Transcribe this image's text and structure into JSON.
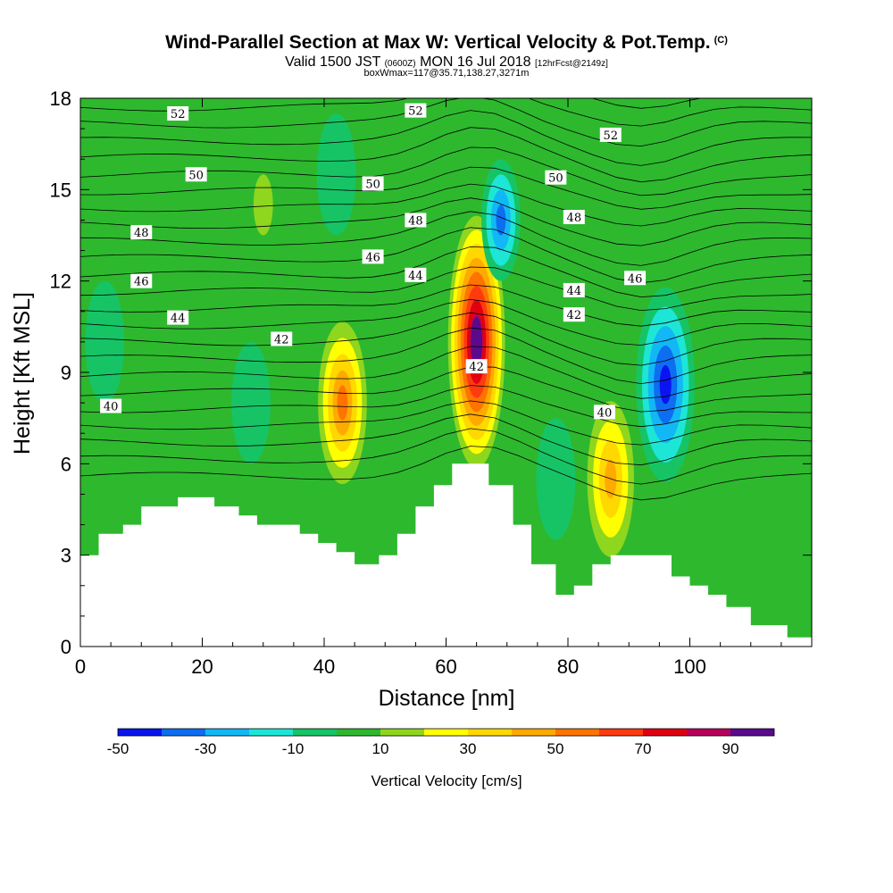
{
  "chart_data": {
    "type": "heatmap",
    "title": "Wind-Parallel Section at Max W: Vertical Velocity & Pot.Temp.",
    "title_mark": "(C)",
    "subtitle_main": "Valid 1500 JST",
    "subtitle_utc": "(0600Z)",
    "subtitle_date": "MON 16 Jul 2018",
    "subtitle_fcst": "[12hrFcst@2149z]",
    "subtitle_box": "boxWmax=117@35.71,138.27,3271m",
    "xlabel": "Distance [nm]",
    "ylabel": "Height [Kft MSL]",
    "xlim": [
      0,
      120
    ],
    "ylim": [
      0,
      18
    ],
    "xticks": [
      0,
      20,
      40,
      60,
      80,
      100
    ],
    "yticks": [
      0,
      3,
      6,
      9,
      12,
      15,
      18
    ],
    "colorbar": {
      "label": "Vertical Velocity [cm/s]",
      "ticks": [
        -50,
        -30,
        -10,
        10,
        30,
        50,
        70,
        90
      ],
      "bounds": [
        -50,
        -40,
        -30,
        -20,
        -10,
        0,
        10,
        20,
        30,
        40,
        50,
        60,
        70,
        80,
        90,
        100
      ],
      "colors": [
        "#0a14f0",
        "#0d6ef2",
        "#12b8f5",
        "#1de6d6",
        "#16c466",
        "#2eb82e",
        "#8fd61e",
        "#ffff00",
        "#ffd800",
        "#ffaa00",
        "#ff7300",
        "#ff3a10",
        "#e00010",
        "#b8005a",
        "#5a0a8c"
      ]
    },
    "background_velocity_cm_s": 0,
    "vertical_velocity_features": [
      {
        "x": 43,
        "y": 8.0,
        "peak": 55,
        "note": "updraft"
      },
      {
        "x": 65,
        "y": 10.0,
        "peak": 95,
        "note": "max updraft"
      },
      {
        "x": 87,
        "y": 5.5,
        "peak": 45,
        "note": "updraft"
      },
      {
        "x": 96,
        "y": 8.6,
        "peak": -45,
        "note": "downdraft"
      },
      {
        "x": 69,
        "y": 14.0,
        "peak": -35,
        "note": "downdraft"
      },
      {
        "x": 30,
        "y": 14.5,
        "peak": 15,
        "note": "weak updraft"
      },
      {
        "x": 42,
        "y": 15.5,
        "peak": -10,
        "note": "weak downdraft"
      },
      {
        "x": 28,
        "y": 8.0,
        "peak": -10,
        "note": "weak downdraft"
      },
      {
        "x": 4,
        "y": 10.0,
        "peak": -10,
        "note": "weak downdraft"
      },
      {
        "x": 78,
        "y": 5.5,
        "peak": -8,
        "note": "weak downdraft"
      }
    ],
    "terrain_kft": [
      [
        0,
        3.0
      ],
      [
        3,
        3.7
      ],
      [
        7,
        4.0
      ],
      [
        10,
        4.6
      ],
      [
        16,
        4.9
      ],
      [
        22,
        4.6
      ],
      [
        26,
        4.3
      ],
      [
        29,
        4.0
      ],
      [
        36,
        3.7
      ],
      [
        39,
        3.4
      ],
      [
        42,
        3.1
      ],
      [
        45,
        2.7
      ],
      [
        49,
        3.0
      ],
      [
        52,
        3.7
      ],
      [
        55,
        4.6
      ],
      [
        58,
        5.3
      ],
      [
        61,
        6.0
      ],
      [
        67,
        5.3
      ],
      [
        71,
        4.0
      ],
      [
        74,
        2.7
      ],
      [
        78,
        1.7
      ],
      [
        81,
        2.0
      ],
      [
        84,
        2.7
      ],
      [
        87,
        3.0
      ],
      [
        97,
        2.3
      ],
      [
        100,
        2.0
      ],
      [
        103,
        1.7
      ],
      [
        106,
        1.3
      ],
      [
        110,
        0.7
      ],
      [
        116,
        0.3
      ],
      [
        120,
        0.3
      ]
    ],
    "potential_temperature_labels": [
      {
        "text": "52",
        "x": 16,
        "y": 17.5
      },
      {
        "text": "52",
        "x": 55,
        "y": 17.6
      },
      {
        "text": "52",
        "x": 87,
        "y": 16.8
      },
      {
        "text": "50",
        "x": 19,
        "y": 15.5
      },
      {
        "text": "50",
        "x": 48,
        "y": 15.2
      },
      {
        "text": "50",
        "x": 78,
        "y": 15.4
      },
      {
        "text": "48",
        "x": 10,
        "y": 13.6
      },
      {
        "text": "48",
        "x": 55,
        "y": 14.0
      },
      {
        "text": "48",
        "x": 81,
        "y": 14.1
      },
      {
        "text": "46",
        "x": 10,
        "y": 12.0
      },
      {
        "text": "46",
        "x": 48,
        "y": 12.8
      },
      {
        "text": "46",
        "x": 91,
        "y": 12.1
      },
      {
        "text": "44",
        "x": 16,
        "y": 10.8
      },
      {
        "text": "44",
        "x": 55,
        "y": 12.2
      },
      {
        "text": "44",
        "x": 81,
        "y": 11.7
      },
      {
        "text": "42",
        "x": 33,
        "y": 10.1
      },
      {
        "text": "42",
        "x": 65,
        "y": 9.2
      },
      {
        "text": "42",
        "x": 81,
        "y": 10.9
      },
      {
        "text": "40",
        "x": 5,
        "y": 7.9
      },
      {
        "text": "40",
        "x": 86,
        "y": 7.7
      }
    ]
  }
}
